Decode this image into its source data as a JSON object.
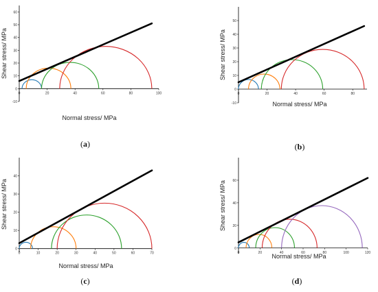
{
  "palette": {
    "blue": "#1f77b4",
    "orange": "#ff7f0e",
    "green": "#2ca02c",
    "red": "#d62728",
    "purple": "#9467bd",
    "envelope": "#000000",
    "axis": "#000000"
  },
  "chart_data": [
    {
      "panel": "(a)",
      "type": "line",
      "xlabel": "Normal stress/ MPa",
      "ylabel": "Shear stress/ MPa",
      "xlim": [
        0,
        100
      ],
      "ylim": [
        -10,
        65
      ],
      "xticks": [
        "0",
        "20",
        "40",
        "60",
        "80",
        "100"
      ],
      "yticks": [
        "-10",
        "0",
        "10",
        "20",
        "30",
        "40",
        "50",
        "60"
      ],
      "circles": [
        {
          "color": "blue",
          "sigma3": 2,
          "sigma1": 16
        },
        {
          "color": "orange",
          "sigma3": 5,
          "sigma1": 37
        },
        {
          "color": "green",
          "sigma3": 16,
          "sigma1": 57
        },
        {
          "color": "red",
          "sigma3": 29,
          "sigma1": 95
        }
      ],
      "envelope": {
        "x": [
          0,
          95
        ],
        "y": [
          6,
          51
        ]
      }
    },
    {
      "panel": "(b)",
      "type": "line",
      "xlabel": "Normal stress/ MPa",
      "ylabel": "Shear stress/ MPa",
      "xlim": [
        0,
        90
      ],
      "ylim": [
        -10,
        60
      ],
      "xticks": [
        "0",
        "20",
        "40",
        "60",
        "80"
      ],
      "yticks": [
        "-10",
        "0",
        "10",
        "20",
        "30",
        "40",
        "50"
      ],
      "circles": [
        {
          "color": "blue",
          "sigma3": 0,
          "sigma1": 14
        },
        {
          "color": "orange",
          "sigma3": 7,
          "sigma1": 29
        },
        {
          "color": "green",
          "sigma3": 16,
          "sigma1": 59
        },
        {
          "color": "red",
          "sigma3": 30,
          "sigma1": 88
        }
      ],
      "envelope": {
        "x": [
          0,
          88
        ],
        "y": [
          5,
          46
        ]
      }
    },
    {
      "panel": "(c)",
      "type": "line",
      "xlabel": "Normal stress/ MPa",
      "ylabel": "Shear stress/ MPa",
      "xlim": [
        0,
        70
      ],
      "ylim": [
        -2,
        50
      ],
      "xticks": [
        "0",
        "10",
        "20",
        "30",
        "40",
        "50",
        "60",
        "70"
      ],
      "yticks": [
        "0",
        "10",
        "20",
        "30",
        "40"
      ],
      "circles": [
        {
          "color": "blue",
          "sigma3": 0,
          "sigma1": 7
        },
        {
          "color": "orange",
          "sigma3": 6,
          "sigma1": 30
        },
        {
          "color": "green",
          "sigma3": 17,
          "sigma1": 54
        },
        {
          "color": "red",
          "sigma3": 20,
          "sigma1": 70
        }
      ],
      "envelope": {
        "x": [
          0,
          70
        ],
        "y": [
          3,
          43
        ]
      }
    },
    {
      "panel": "(d)",
      "type": "line",
      "xlabel": "Normal stress/ MPa",
      "ylabel": "Shear stress/ MPa",
      "xlim": [
        0,
        120
      ],
      "ylim": [
        -5,
        80
      ],
      "xticks": [
        "0",
        "20",
        "40",
        "60",
        "80",
        "100",
        "120"
      ],
      "yticks": [
        "0",
        "20",
        "40",
        "60"
      ],
      "circles": [
        {
          "color": "blue",
          "sigma3": 0,
          "sigma1": 10
        },
        {
          "color": "orange",
          "sigma3": 7,
          "sigma1": 31
        },
        {
          "color": "green",
          "sigma3": 16,
          "sigma1": 52
        },
        {
          "color": "red",
          "sigma3": 22,
          "sigma1": 73
        },
        {
          "color": "purple",
          "sigma3": 40,
          "sigma1": 115
        }
      ],
      "envelope": {
        "x": [
          0,
          120
        ],
        "y": [
          5,
          62
        ]
      }
    }
  ]
}
